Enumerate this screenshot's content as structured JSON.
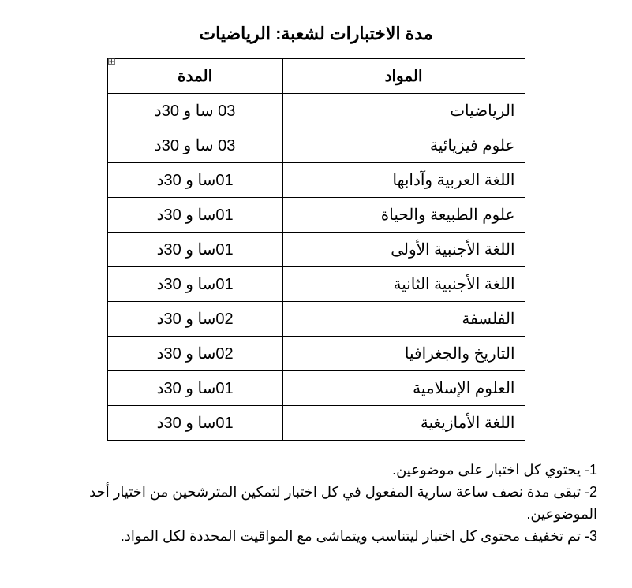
{
  "title": "مدة الاختبارات لشعبة:  الرياضيات",
  "table": {
    "headers": {
      "subject": "المواد",
      "duration": "المدة"
    },
    "rows": [
      {
        "subject": "الرياضيات",
        "duration": "03 سا و 30د"
      },
      {
        "subject": "علوم فيزيائية",
        "duration": "03 سا و 30د"
      },
      {
        "subject": "اللغة العربية وآدابها",
        "duration": "01سا و 30د"
      },
      {
        "subject": "علوم الطبيعة والحياة",
        "duration": "01سا و 30د"
      },
      {
        "subject": "اللغة الأجنبية الأولى",
        "duration": "01سا و 30د"
      },
      {
        "subject": "اللغة الأجنبية الثانية",
        "duration": "01سا و 30د"
      },
      {
        "subject": "الفلسفة",
        "duration": "02سا و 30د"
      },
      {
        "subject": "التاريخ والجغرافيا",
        "duration": "02سا و 30د"
      },
      {
        "subject": "العلوم الإسلامية",
        "duration": "01سا و 30د"
      },
      {
        "subject": "اللغة الأمازيغية",
        "duration": "01سا و 30د"
      }
    ]
  },
  "notes": [
    "1- يحتوي كل اختبار على موضوعين.",
    "2- تبقى مدة نصف ساعة سارية المفعول في كل اختبار لتمكين المترشحين من اختيار أحد الموضوعين.",
    "3- تم تخفيف محتوى كل اختبار ليتناسب ويتماشى مع المواقيت المحددة لكل المواد."
  ]
}
